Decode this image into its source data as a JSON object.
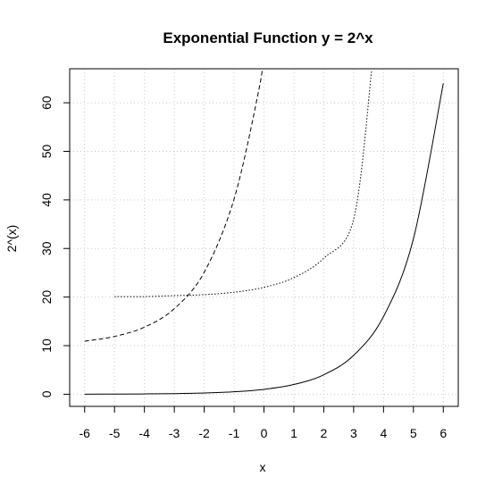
{
  "chart_data": {
    "type": "line",
    "title": "Exponential Function y = 2^x",
    "xlabel": "x",
    "ylabel": "2^(x)",
    "xlim": [
      -6.5,
      6.5
    ],
    "ylim": [
      -2.5,
      67
    ],
    "x_ticks": [
      "-6",
      "-5",
      "-4",
      "-3",
      "-2",
      "-1",
      "0",
      "1",
      "2",
      "3",
      "4",
      "5",
      "6"
    ],
    "y_ticks": [
      "0",
      "10",
      "20",
      "30",
      "40",
      "50",
      "60"
    ],
    "grid": true,
    "grid_style": "dotted",
    "legend": "none",
    "series": [
      {
        "line_style": "solid",
        "x": [
          -6,
          -5,
          -4,
          -3,
          -2,
          -1,
          0,
          1,
          2,
          3,
          4,
          5,
          6
        ],
        "y": [
          0.016,
          0.031,
          0.063,
          0.125,
          0.25,
          0.5,
          1,
          2,
          4,
          8,
          16,
          32,
          64
        ]
      },
      {
        "line_style": "dotted",
        "x": [
          -5,
          -4,
          -3,
          -2,
          -1,
          0,
          1,
          2,
          3,
          3.6
        ],
        "y": [
          20.1,
          20.1,
          20.3,
          20.5,
          21.0,
          22.0,
          24.0,
          28.0,
          36.0,
          66.5
        ]
      },
      {
        "line_style": "dashed",
        "x": [
          -6,
          -5,
          -4,
          -3,
          -2,
          -1,
          0,
          -0.17
        ],
        "y": [
          10.9,
          11.9,
          13.8,
          17.6,
          25.1,
          40.2,
          70.4,
          62.7
        ]
      }
    ]
  }
}
